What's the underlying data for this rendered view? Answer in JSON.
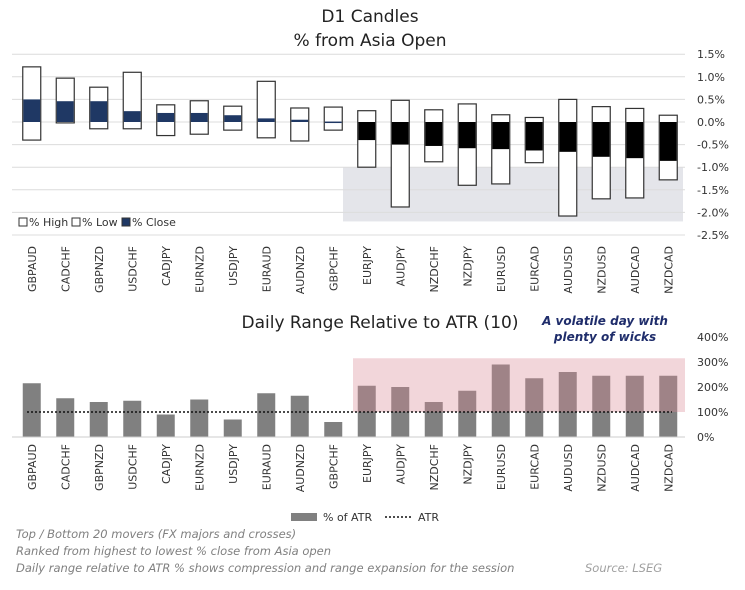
{
  "chart_data": [
    {
      "type": "candlestick",
      "title": "D1 Candles",
      "subtitle": "% from Asia Open",
      "categories": [
        "GBPAUD",
        "CADCHF",
        "GBPNZD",
        "USDCHF",
        "CADJPY",
        "EURNZD",
        "USDJPY",
        "EURAUD",
        "AUDNZD",
        "GBPCHF",
        "EURJPY",
        "AUDJPY",
        "NZDCHF",
        "NZDJPY",
        "EURUSD",
        "EURCAD",
        "AUDUSD",
        "NZDUSD",
        "AUDCAD",
        "NZDCAD"
      ],
      "series": [
        {
          "name": "% High",
          "values": [
            1.22,
            0.97,
            0.77,
            1.1,
            0.38,
            0.47,
            0.35,
            0.9,
            0.31,
            0.33,
            0.25,
            0.48,
            0.27,
            0.4,
            0.16,
            0.1,
            0.5,
            0.34,
            0.3,
            0.15
          ]
        },
        {
          "name": "% Low",
          "values": [
            -0.4,
            -0.02,
            -0.15,
            -0.15,
            -0.3,
            -0.27,
            -0.18,
            -0.35,
            -0.42,
            -0.18,
            -1.0,
            -1.88,
            -0.88,
            -1.4,
            -1.37,
            -0.9,
            -2.08,
            -1.7,
            -1.68,
            -1.28
          ]
        },
        {
          "name": "% Close",
          "values": [
            0.5,
            0.46,
            0.46,
            0.24,
            0.2,
            0.2,
            0.15,
            0.08,
            0.05,
            0.01,
            -0.4,
            -0.5,
            -0.53,
            -0.58,
            -0.6,
            -0.63,
            -0.66,
            -0.77,
            -0.8,
            -0.86
          ]
        }
      ],
      "ylim": [
        -2.5,
        1.5
      ],
      "yticks": [
        "1.5%",
        "1.0%",
        "0.5%",
        "0.0%",
        "-0.5%",
        "-1.0%",
        "-1.5%",
        "-2.0%",
        "-2.5%"
      ],
      "grid": true,
      "legend": "bottom-left",
      "highlight_range": [
        -1.0,
        -2.2
      ],
      "colors": {
        "up_close": "#1f3864",
        "down_close": "#000000",
        "highlight": "#e4e5ea"
      }
    },
    {
      "type": "bar",
      "title": "Daily Range Relative to ATR (10)",
      "annotation": "A volatile day with plenty of wicks",
      "categories": [
        "GBPAUD",
        "CADCHF",
        "GBPNZD",
        "USDCHF",
        "CADJPY",
        "EURNZD",
        "USDJPY",
        "EURAUD",
        "AUDNZD",
        "GBPCHF",
        "EURJPY",
        "AUDJPY",
        "NZDCHF",
        "NZDJPY",
        "EURUSD",
        "EURCAD",
        "AUDUSD",
        "NZDUSD",
        "AUDCAD",
        "NZDCAD"
      ],
      "series": [
        {
          "name": "% of ATR",
          "values": [
            215,
            155,
            140,
            145,
            90,
            150,
            70,
            175,
            165,
            60,
            205,
            200,
            140,
            185,
            290,
            235,
            260,
            245,
            245,
            245
          ]
        }
      ],
      "atr": {
        "name": "ATR",
        "value": 100
      },
      "ylim": [
        0,
        400
      ],
      "yticks": [
        "400%",
        "300%",
        "200%",
        "100%",
        "0%"
      ],
      "legend": "bottom",
      "highlight_range": [
        100,
        315
      ],
      "colors": {
        "bar": "#808080",
        "highlight": "#f0d0d4",
        "annotation": "#1f2d6b"
      }
    }
  ],
  "footer": {
    "lines": [
      "Top / Bottom 20 movers (FX majors and crosses)",
      "Ranked from highest to lowest % close from Asia open",
      "Daily range relative to ATR % shows compression and range expansion for the session"
    ],
    "source": "Source: LSEG"
  }
}
